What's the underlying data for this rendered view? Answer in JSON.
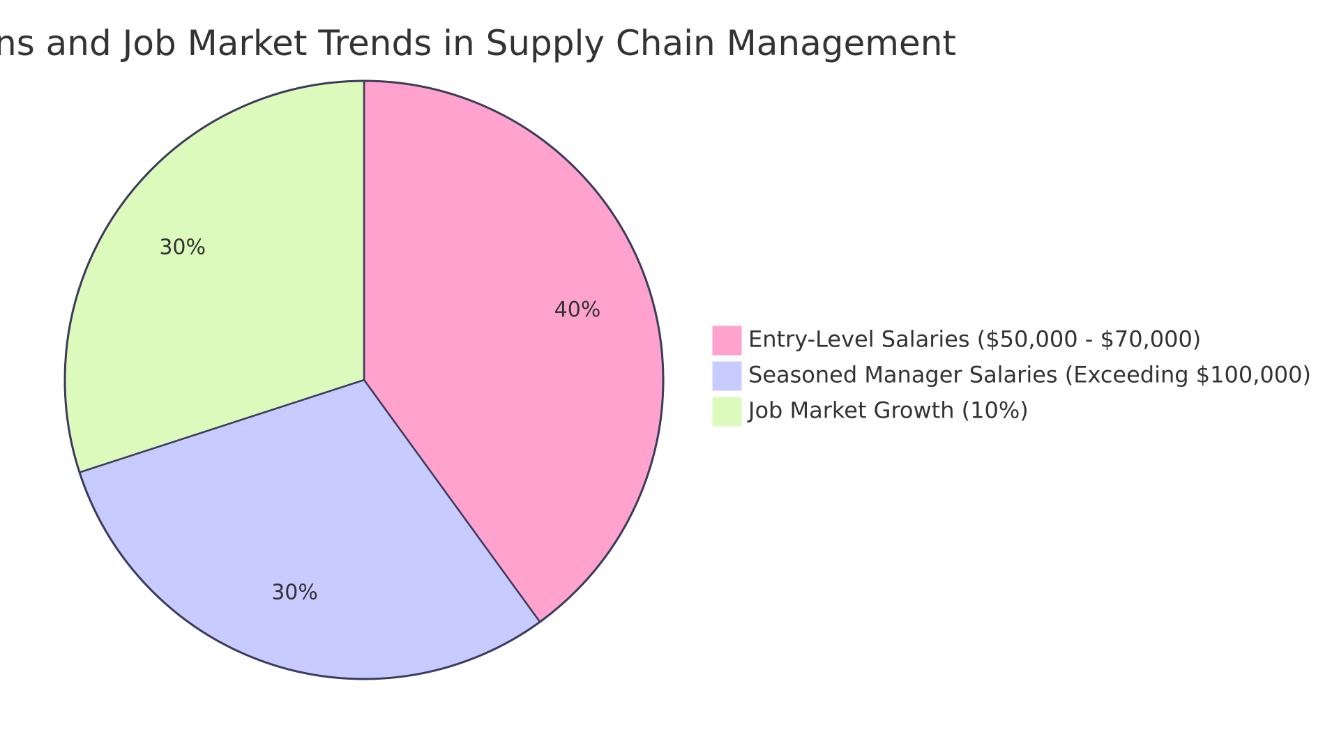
{
  "chart_data": {
    "type": "pie",
    "title": "Salary Expectations and Job Market Trends in Supply Chain Management",
    "slices": [
      {
        "label": "Entry-Level Salaries ($50,000 - $70,000)",
        "value": 40,
        "display": "40%",
        "color": "#FFA3CE"
      },
      {
        "label": "Seasoned Manager Salaries (Exceeding $100,000)",
        "value": 30,
        "display": "30%",
        "color": "#C8CBFF"
      },
      {
        "label": "Job Market Growth (10%)",
        "value": 30,
        "display": "30%",
        "color": "#DBFABB"
      }
    ],
    "start_angle_deg": 0,
    "direction": "clockwise",
    "legend_position": "right",
    "slice_border_color": "#3B3B5C"
  }
}
